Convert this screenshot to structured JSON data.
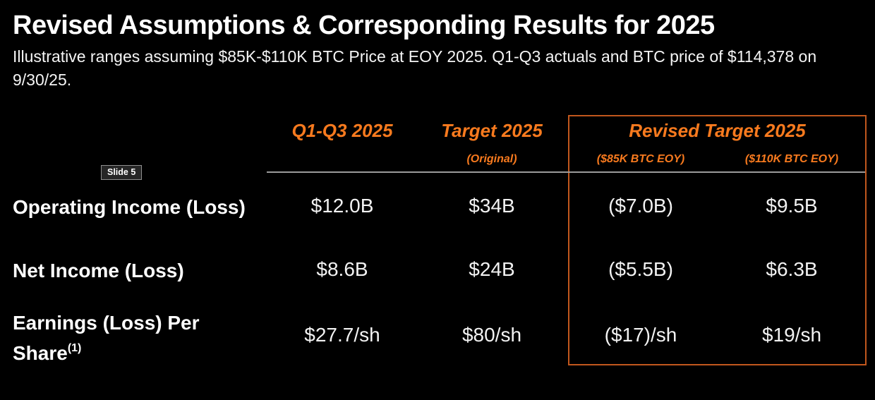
{
  "slide": {
    "badge": "Slide 5",
    "title": "Revised Assumptions & Corresponding Results for 2025",
    "subtitle": "Illustrative ranges assuming $85K-$110K BTC Price at EOY 2025. Q1-Q3 actuals and BTC price of $114,378 on 9/30/25."
  },
  "colors": {
    "background": "#000000",
    "accent_orange": "#F87A1E",
    "box_border": "#C1571D",
    "divider_gray": "#9B9B9B",
    "text_white": "#FFFFFF"
  },
  "table": {
    "group_header": "Revised Target 2025",
    "columns": [
      {
        "label": "Q1-Q3 2025",
        "sublabel": ""
      },
      {
        "label": "Target 2025",
        "sublabel": "(Original)"
      },
      {
        "label": "",
        "sublabel": "($85K BTC EOY)"
      },
      {
        "label": "",
        "sublabel": "($110K BTC EOY)"
      }
    ],
    "rows": [
      {
        "label": "Operating Income (Loss)",
        "footnote_marker": "",
        "values": [
          "$12.0B",
          "$34B",
          "($7.0B)",
          "$9.5B"
        ]
      },
      {
        "label": "Net Income (Loss)",
        "footnote_marker": "",
        "values": [
          "$8.6B",
          "$24B",
          "($5.5B)",
          "$6.3B"
        ]
      },
      {
        "label": "Earnings (Loss) Per Share",
        "footnote_marker": "(1)",
        "values": [
          "$27.7/sh",
          "$80/sh",
          "($17)/sh",
          "$19/sh"
        ]
      }
    ]
  }
}
